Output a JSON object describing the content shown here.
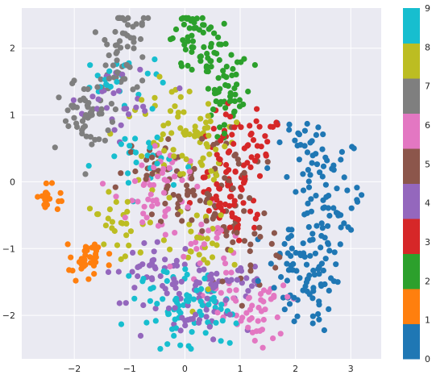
{
  "chart_data": {
    "type": "scatter",
    "title": "",
    "xlabel": "",
    "ylabel": "",
    "xlim": [
      -2.95,
      3.55
    ],
    "ylim": [
      -2.65,
      2.6
    ],
    "xticks": [
      -2,
      -1,
      0,
      1,
      2,
      3
    ],
    "yticks": [
      -2,
      -1,
      0,
      1,
      2
    ],
    "xtick_labels": [
      "−2",
      "−1",
      "0",
      "1",
      "2",
      "3"
    ],
    "ytick_labels": [
      "−2",
      "−1",
      "0",
      "1",
      "2"
    ],
    "grid": true,
    "background": "#eaeaf2",
    "colormap": "tab10",
    "colorbar": {
      "range": [
        0,
        9
      ],
      "ticks": [
        "0",
        "1",
        "2",
        "3",
        "4",
        "5",
        "6",
        "7",
        "8",
        "9"
      ],
      "colors": [
        "#1f77b4",
        "#ff7f0e",
        "#2ca02c",
        "#d62728",
        "#9467bd",
        "#8c564b",
        "#e377c2",
        "#7f7f7f",
        "#bcbd22",
        "#17becf"
      ]
    },
    "clusters": [
      {
        "label": 0,
        "centers": [
          [
            2.4,
            -1.2
          ],
          [
            2.6,
            0.0
          ],
          [
            2.2,
            -1.6
          ],
          [
            2.1,
            0.5
          ],
          [
            2.7,
            -0.6
          ],
          [
            1.9,
            -1.3
          ]
        ],
        "spread": [
          0.28,
          0.35
        ],
        "count": 170
      },
      {
        "label": 1,
        "centers": [
          [
            -2.5,
            -0.25
          ],
          [
            -1.85,
            -1.25
          ],
          [
            -1.7,
            -1.05
          ]
        ],
        "spread": [
          0.12,
          0.1
        ],
        "count": 60
      },
      {
        "label": 2,
        "centers": [
          [
            0.0,
            2.3
          ],
          [
            0.55,
            1.9
          ],
          [
            0.9,
            1.4
          ],
          [
            0.7,
            1.1
          ],
          [
            0.3,
            2.1
          ]
        ],
        "spread": [
          0.18,
          0.2
        ],
        "count": 110
      },
      {
        "label": 3,
        "centers": [
          [
            0.8,
            0.15
          ],
          [
            1.0,
            -0.6
          ],
          [
            0.6,
            -0.3
          ],
          [
            1.3,
            0.5
          ],
          [
            0.9,
            0.7
          ]
        ],
        "spread": [
          0.25,
          0.25
        ],
        "count": 110
      },
      {
        "label": 4,
        "centers": [
          [
            -0.2,
            -1.6
          ],
          [
            0.3,
            -1.8
          ],
          [
            -0.6,
            -1.3
          ],
          [
            -1.2,
            1.2
          ],
          [
            0.8,
            -1.6
          ]
        ],
        "spread": [
          0.35,
          0.25
        ],
        "count": 140
      },
      {
        "label": 5,
        "centers": [
          [
            0.0,
            -0.2
          ],
          [
            0.6,
            -0.5
          ],
          [
            -0.5,
            0.1
          ],
          [
            0.9,
            0.3
          ],
          [
            1.1,
            -1.0
          ]
        ],
        "spread": [
          0.35,
          0.3
        ],
        "count": 120
      },
      {
        "label": 6,
        "centers": [
          [
            -0.3,
            0.1
          ],
          [
            1.3,
            -2.0
          ],
          [
            0.9,
            -1.8
          ],
          [
            -0.7,
            -0.3
          ],
          [
            0.3,
            -0.9
          ]
        ],
        "spread": [
          0.3,
          0.25
        ],
        "count": 130
      },
      {
        "label": 7,
        "centers": [
          [
            -1.2,
            1.8
          ],
          [
            -1.6,
            1.1
          ],
          [
            -1.0,
            2.2
          ],
          [
            -1.9,
            0.9
          ]
        ],
        "spread": [
          0.2,
          0.3
        ],
        "count": 110
      },
      {
        "label": 8,
        "centers": [
          [
            0.1,
            0.9
          ],
          [
            -0.3,
            0.6
          ],
          [
            0.3,
            -1.0
          ],
          [
            -1.2,
            -0.6
          ],
          [
            0.4,
            0.4
          ]
        ],
        "spread": [
          0.35,
          0.3
        ],
        "count": 140
      },
      {
        "label": 9,
        "centers": [
          [
            0.0,
            -1.9
          ],
          [
            -0.4,
            -1.7
          ],
          [
            -1.1,
            1.5
          ],
          [
            -0.9,
            0.3
          ],
          [
            0.5,
            -2.0
          ]
        ],
        "spread": [
          0.35,
          0.25
        ],
        "count": 130
      }
    ]
  }
}
